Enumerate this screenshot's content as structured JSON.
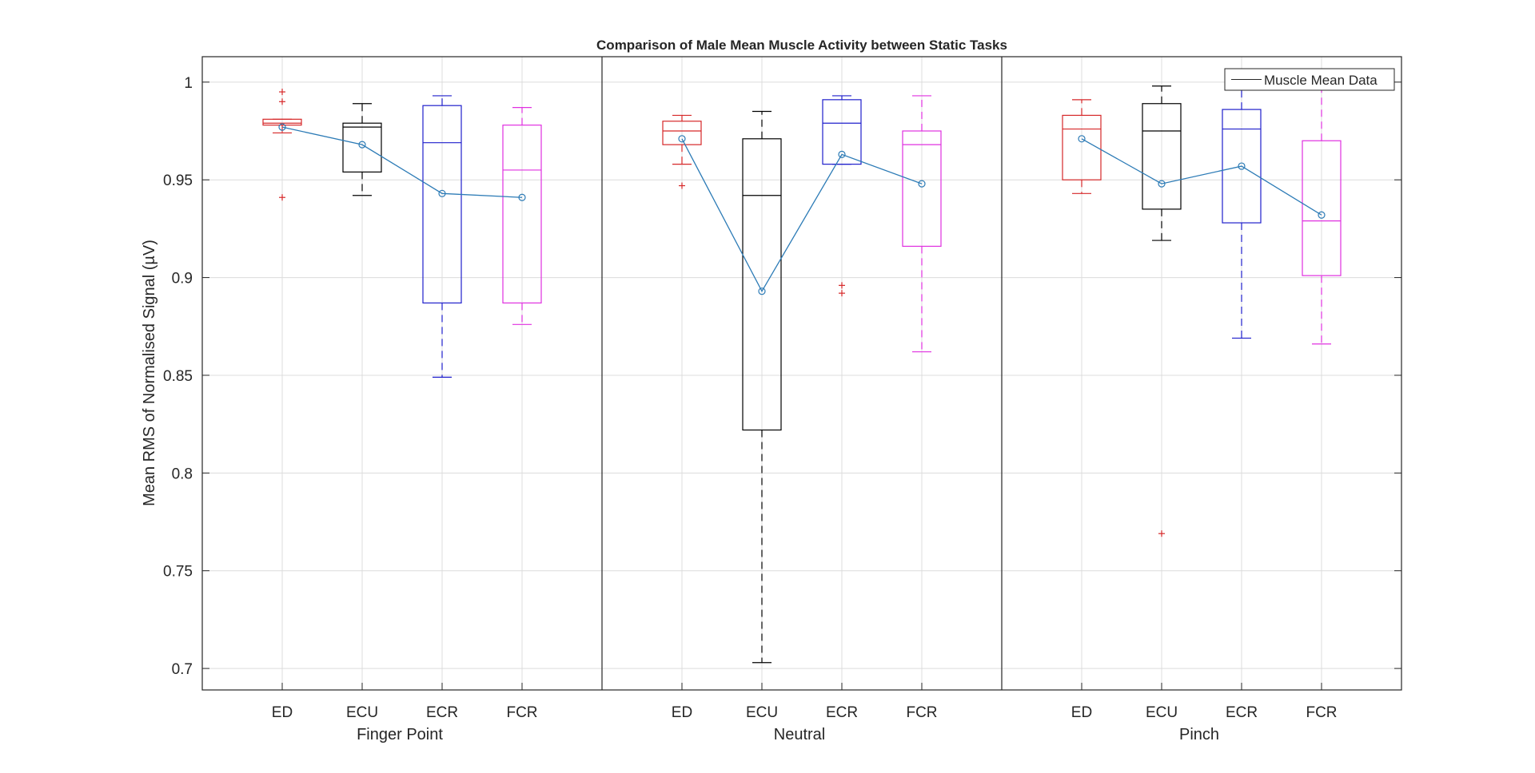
{
  "chart_data": {
    "type": "box",
    "title": "Comparison of Male Mean Muscle Activity between Static Tasks",
    "ylabel": "Mean RMS of Normalised Signal (µV)",
    "ylim": [
      0.689,
      1.013
    ],
    "yticks": [
      0.7,
      0.75,
      0.8,
      0.85,
      0.9,
      0.95,
      1
    ],
    "yticklabels": [
      "0.7",
      "0.75",
      "0.8",
      "0.85",
      "0.9",
      "0.95",
      "1"
    ],
    "grid": true,
    "legend": {
      "label": "Muscle Mean Data",
      "position": "top-right"
    },
    "muscles": [
      "ED",
      "ECU",
      "ECR",
      "FCR"
    ],
    "muscle_colors": {
      "ED": "#d62728",
      "ECU": "#000000",
      "ECR": "#1f1fcc",
      "FCR": "#e030e0"
    },
    "mean_line_color": "#2c7bb6",
    "groups": [
      {
        "task": "Finger Point",
        "boxes": [
          {
            "muscle": "ED",
            "whisker_low": 0.974,
            "q1": 0.978,
            "median": 0.979,
            "q3": 0.981,
            "whisker_high": 0.981,
            "outliers": [
              0.995,
              0.99,
              0.941
            ],
            "mean": 0.977
          },
          {
            "muscle": "ECU",
            "whisker_low": 0.942,
            "q1": 0.954,
            "median": 0.977,
            "q3": 0.979,
            "whisker_high": 0.989,
            "outliers": [],
            "mean": 0.968
          },
          {
            "muscle": "ECR",
            "whisker_low": 0.849,
            "q1": 0.887,
            "median": 0.969,
            "q3": 0.988,
            "whisker_high": 0.993,
            "outliers": [],
            "mean": 0.943
          },
          {
            "muscle": "FCR",
            "whisker_low": 0.876,
            "q1": 0.887,
            "median": 0.955,
            "q3": 0.978,
            "whisker_high": 0.987,
            "outliers": [],
            "mean": 0.941
          }
        ]
      },
      {
        "task": "Neutral",
        "boxes": [
          {
            "muscle": "ED",
            "whisker_low": 0.958,
            "q1": 0.968,
            "median": 0.975,
            "q3": 0.98,
            "whisker_high": 0.983,
            "outliers": [
              0.947
            ],
            "mean": 0.971
          },
          {
            "muscle": "ECU",
            "whisker_low": 0.703,
            "q1": 0.822,
            "median": 0.942,
            "q3": 0.971,
            "whisker_high": 0.985,
            "outliers": [],
            "mean": 0.893
          },
          {
            "muscle": "ECR",
            "whisker_low": 0.958,
            "q1": 0.958,
            "median": 0.979,
            "q3": 0.991,
            "whisker_high": 0.993,
            "outliers": [
              0.896,
              0.892
            ],
            "mean": 0.963
          },
          {
            "muscle": "FCR",
            "whisker_low": 0.862,
            "q1": 0.916,
            "median": 0.968,
            "q3": 0.975,
            "whisker_high": 0.993,
            "outliers": [],
            "mean": 0.948
          }
        ]
      },
      {
        "task": "Pinch",
        "boxes": [
          {
            "muscle": "ED",
            "whisker_low": 0.943,
            "q1": 0.95,
            "median": 0.976,
            "q3": 0.983,
            "whisker_high": 0.991,
            "outliers": [],
            "mean": 0.971
          },
          {
            "muscle": "ECU",
            "whisker_low": 0.919,
            "q1": 0.935,
            "median": 0.975,
            "q3": 0.989,
            "whisker_high": 0.998,
            "outliers": [
              0.769
            ],
            "mean": 0.948
          },
          {
            "muscle": "ECR",
            "whisker_low": 0.869,
            "q1": 0.928,
            "median": 0.976,
            "q3": 0.986,
            "whisker_high": 0.999,
            "outliers": [],
            "mean": 0.957
          },
          {
            "muscle": "FCR",
            "whisker_low": 0.866,
            "q1": 0.901,
            "median": 0.929,
            "q3": 0.97,
            "whisker_high": 0.996,
            "outliers": [],
            "mean": 0.932
          }
        ]
      }
    ]
  }
}
